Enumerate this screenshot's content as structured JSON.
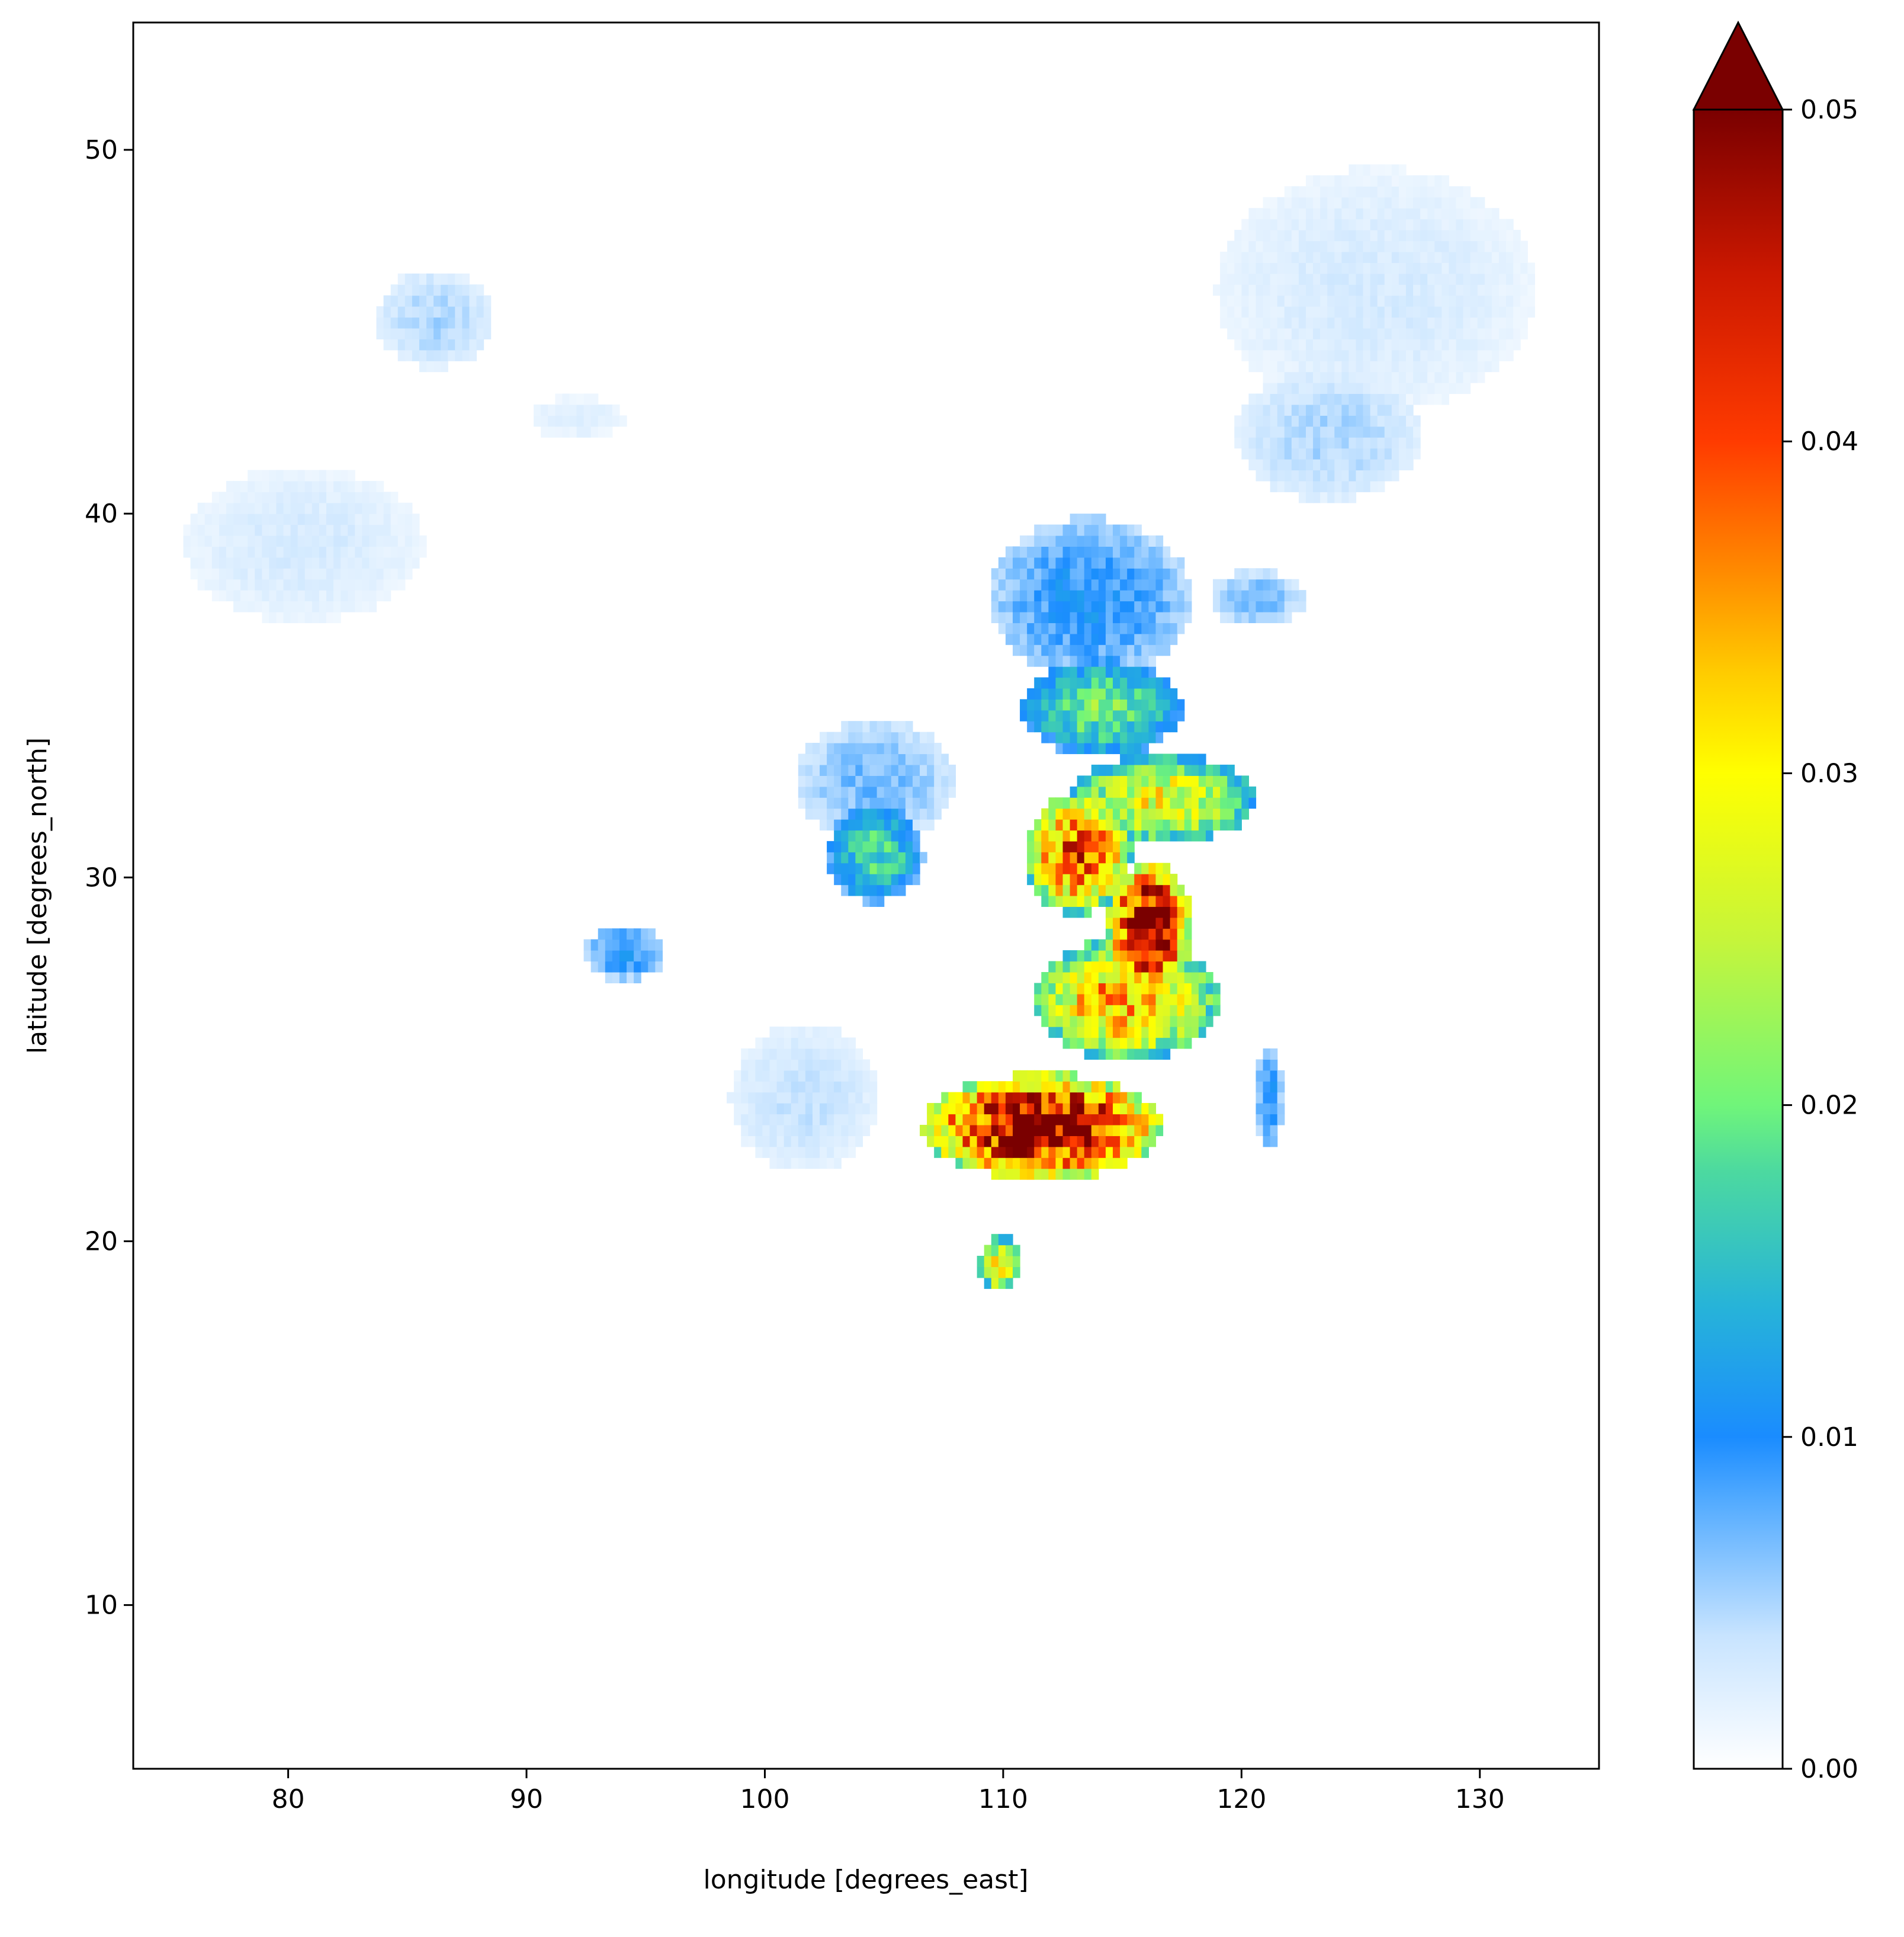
{
  "chart_data": {
    "type": "heatmap",
    "title": "",
    "xlabel": "longitude [degrees_east]",
    "ylabel": "latitude [degrees_north]",
    "xlim": [
      73.5,
      135.0
    ],
    "ylim": [
      5.5,
      53.5
    ],
    "x_ticks": [
      80,
      90,
      100,
      110,
      120,
      130
    ],
    "y_ticks": [
      10,
      20,
      30,
      40,
      50
    ],
    "x_tick_labels": [
      "80",
      "90",
      "100",
      "110",
      "120",
      "130"
    ],
    "y_tick_labels": [
      "10",
      "20",
      "30",
      "40",
      "50"
    ],
    "grid": false,
    "colorbar": {
      "orientation": "vertical",
      "position": "right",
      "extend": "max",
      "vmin": 0.0,
      "vmax": 0.05,
      "ticks": [
        0.0,
        0.01,
        0.02,
        0.03,
        0.04,
        0.05
      ],
      "tick_labels": [
        "0.00",
        "0.01",
        "0.02",
        "0.03",
        "0.04",
        "0.05"
      ],
      "colormap_stops": [
        {
          "value": 0.0,
          "color": "#ffffff"
        },
        {
          "value": 0.004,
          "color": "#c8e4ff"
        },
        {
          "value": 0.008,
          "color": "#55acff"
        },
        {
          "value": 0.01,
          "color": "#1a8cff"
        },
        {
          "value": 0.014,
          "color": "#27b4d8"
        },
        {
          "value": 0.018,
          "color": "#4cd9a0"
        },
        {
          "value": 0.02,
          "color": "#70f57a"
        },
        {
          "value": 0.025,
          "color": "#c6f53a"
        },
        {
          "value": 0.03,
          "color": "#ffff00"
        },
        {
          "value": 0.033,
          "color": "#ffcc00"
        },
        {
          "value": 0.036,
          "color": "#ff8c00"
        },
        {
          "value": 0.04,
          "color": "#ff3b00"
        },
        {
          "value": 0.045,
          "color": "#cc1800"
        },
        {
          "value": 0.05,
          "color": "#7a0000"
        }
      ],
      "over_color": "#7a0000"
    },
    "field_regions": [
      {
        "lon": 80.5,
        "lat": 39.0,
        "radius_lon": 4.5,
        "radius_lat": 1.9,
        "value": 0.003
      },
      {
        "lon": 86.0,
        "lat": 45.2,
        "radius_lon": 2.2,
        "radius_lat": 1.2,
        "value": 0.005
      },
      {
        "lon": 92.0,
        "lat": 42.5,
        "radius_lon": 1.8,
        "radius_lat": 0.5,
        "value": 0.0025
      },
      {
        "lon": 94.0,
        "lat": 27.8,
        "radius_lon": 1.5,
        "radius_lat": 0.7,
        "value": 0.01
      },
      {
        "lon": 101.5,
        "lat": 23.8,
        "radius_lon": 2.8,
        "radius_lat": 1.8,
        "value": 0.004
      },
      {
        "lon": 104.5,
        "lat": 30.5,
        "radius_lon": 1.8,
        "radius_lat": 1.2,
        "value": 0.018
      },
      {
        "lon": 104.5,
        "lat": 32.5,
        "radius_lon": 3.0,
        "radius_lat": 1.5,
        "value": 0.007
      },
      {
        "lon": 113.5,
        "lat": 37.5,
        "radius_lon": 3.8,
        "radius_lat": 2.0,
        "value": 0.01
      },
      {
        "lon": 114.0,
        "lat": 34.5,
        "radius_lon": 3.0,
        "radius_lat": 1.2,
        "value": 0.02
      },
      {
        "lon": 116.5,
        "lat": 32.0,
        "radius_lon": 3.5,
        "radius_lat": 1.1,
        "value": 0.029
      },
      {
        "lon": 113.0,
        "lat": 30.5,
        "radius_lon": 2.0,
        "radius_lat": 1.5,
        "value": 0.04
      },
      {
        "lon": 116.0,
        "lat": 28.5,
        "radius_lon": 1.6,
        "radius_lat": 1.6,
        "value": 0.05
      },
      {
        "lon": 115.0,
        "lat": 26.5,
        "radius_lon": 3.5,
        "radius_lat": 1.5,
        "value": 0.035
      },
      {
        "lon": 111.5,
        "lat": 23.0,
        "radius_lon": 4.5,
        "radius_lat": 1.3,
        "value": 0.05
      },
      {
        "lon": 109.7,
        "lat": 19.2,
        "radius_lon": 0.8,
        "radius_lat": 0.7,
        "value": 0.03
      },
      {
        "lon": 121.0,
        "lat": 23.8,
        "radius_lon": 0.5,
        "radius_lat": 1.3,
        "value": 0.01
      },
      {
        "lon": 125.5,
        "lat": 46.0,
        "radius_lon": 6.0,
        "radius_lat": 3.0,
        "value": 0.003
      },
      {
        "lon": 123.5,
        "lat": 42.0,
        "radius_lon": 3.5,
        "radius_lat": 1.6,
        "value": 0.005
      },
      {
        "lon": 120.5,
        "lat": 37.5,
        "radius_lon": 1.8,
        "radius_lat": 0.7,
        "value": 0.007
      }
    ]
  }
}
